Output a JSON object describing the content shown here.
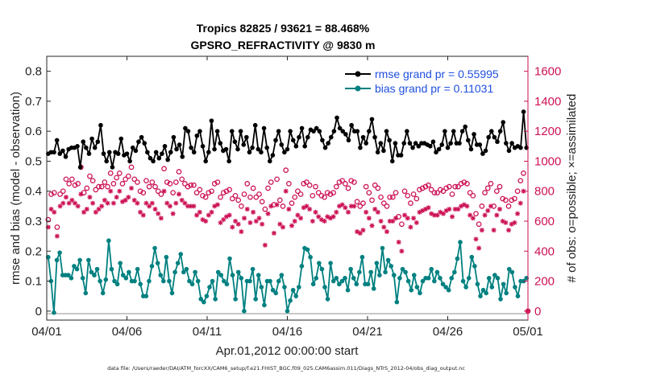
{
  "chart_data": {
    "type": "line",
    "title_line1": "Tropics 82825 / 93621 = 88.468%",
    "title_line2": "GPSRO_REFRACTIVITY @ 9830 m",
    "ylabel_left": "rmse and bias (model - observation)",
    "ylabel_right": "# of obs: o=possible; ×=assimilated",
    "xlabel": "Apr.01,2012 00:00:00 start",
    "footnote": "data file: /Users/raeder/DAI/ATM_forcXX/CAM6_setup/f.e21.FHIST_BGC.f09_025.CAM6assim.011/Diags_NTrS_2012-04/obs_diag_output.nc",
    "x_ticks": [
      {
        "day": 0,
        "label": "04/01"
      },
      {
        "day": 5,
        "label": "04/06"
      },
      {
        "day": 10,
        "label": "04/11"
      },
      {
        "day": 15,
        "label": "04/16"
      },
      {
        "day": 20,
        "label": "04/21"
      },
      {
        "day": 25,
        "label": "04/26"
      },
      {
        "day": 30,
        "label": "05/01"
      }
    ],
    "y_left_ticks": [
      "0",
      "0.1",
      "0.2",
      "0.3",
      "0.4",
      "0.5",
      "0.6",
      "0.7",
      "0.8"
    ],
    "y_right_ticks": [
      "0",
      "200",
      "400",
      "600",
      "800",
      "1000",
      "1200",
      "1400",
      "1600"
    ],
    "xlim": [
      0,
      30
    ],
    "ylim_left": [
      -0.03,
      0.85
    ],
    "ylim_right": [
      -60,
      1700
    ],
    "colors": {
      "rmse": "#000000",
      "bias": "#008080",
      "obs": "#cc1155",
      "legend_text": "#1f4fe0"
    },
    "series": [
      {
        "name": "rmse grand pr = 0.55995",
        "values": [
          0.525,
          0.53,
          0.53,
          0.57,
          0.525,
          0.535,
          0.515,
          0.54,
          0.545,
          0.545,
          0.55,
          0.48,
          0.565,
          0.545,
          0.525,
          0.575,
          0.545,
          0.565,
          0.62,
          0.525,
          0.5,
          0.53,
          0.48,
          0.53,
          0.525,
          0.575,
          0.52,
          0.525,
          0.5,
          0.545,
          0.535,
          0.565,
          0.58,
          0.56,
          0.53,
          0.51,
          0.5,
          0.53,
          0.51,
          0.525,
          0.55,
          0.505,
          0.53,
          0.58,
          0.54,
          0.555,
          0.515,
          0.61,
          0.6,
          0.545,
          0.53,
          0.585,
          0.6,
          0.55,
          0.5,
          0.53,
          0.635,
          0.54,
          0.6,
          0.56,
          0.535,
          0.54,
          0.5,
          0.6,
          0.565,
          0.54,
          0.6,
          0.555,
          0.58,
          0.53,
          0.545,
          0.62,
          0.54,
          0.53,
          0.61,
          0.545,
          0.5,
          0.52,
          0.57,
          0.6,
          0.555,
          0.53,
          0.54,
          0.6,
          0.57,
          0.55,
          0.58,
          0.61,
          0.55,
          0.58,
          0.605,
          0.6,
          0.61,
          0.6,
          0.57,
          0.545,
          0.56,
          0.58,
          0.6,
          0.645,
          0.61,
          0.6,
          0.59,
          0.57,
          0.62,
          0.6,
          0.6,
          0.545,
          0.58,
          0.56,
          0.6,
          0.64,
          0.58,
          0.53,
          0.56,
          0.535,
          0.6,
          0.57,
          0.5,
          0.56,
          0.52,
          0.52,
          0.56,
          0.6,
          0.56,
          0.545,
          0.56,
          0.55,
          0.56,
          0.56,
          0.555,
          0.55,
          0.565,
          0.53,
          0.54,
          0.555,
          0.6,
          0.545,
          0.56,
          0.6,
          0.56,
          0.56,
          0.6,
          0.615,
          0.57,
          0.54,
          0.59,
          0.555,
          0.555,
          0.525,
          0.535,
          0.58,
          0.6,
          0.58,
          0.565,
          0.6,
          0.63,
          0.56,
          0.535,
          0.56,
          0.545,
          0.55,
          0.545,
          0.665,
          0.545
        ]
      },
      {
        "name": "bias grand pr = 0.11031",
        "values": [
          0.18,
          0.1,
          -0.005,
          0.17,
          0.195,
          0.12,
          0.12,
          0.12,
          0.11,
          0.15,
          0.14,
          0.17,
          0.11,
          0.06,
          0.17,
          0.13,
          0.12,
          0.14,
          0.1,
          0.06,
          0.105,
          0.235,
          0.14,
          0.1,
          0.09,
          0.16,
          0.12,
          0.11,
          0.13,
          0.1,
          0.1,
          0.14,
          0.09,
          0.05,
          0.05,
          0.1,
          0.15,
          0.21,
          0.16,
          0.12,
          0.1,
          0.18,
          0.1,
          0.06,
          0.13,
          0.16,
          0.19,
          0.13,
          0.14,
          0.1,
          0.09,
          0.13,
          0.1,
          0.04,
          0.03,
          0.05,
          0.08,
          0.1,
          0.04,
          0.13,
          0.12,
          0.1,
          0.09,
          0.175,
          0.12,
          0.04,
          0.13,
          0.11,
          0.0,
          0.1,
          0.1,
          0.14,
          0.04,
          0.12,
          0.08,
          0.02,
          0.1,
          0.1,
          0.07,
          0.06,
          0.1,
          0.12,
          0.08,
          0.0,
          0.035,
          0.07,
          0.05,
          0.08,
          0.15,
          0.21,
          0.205,
          0.18,
          0.09,
          0.11,
          0.16,
          0.14,
          0.08,
          0.04,
          0.16,
          0.1,
          0.11,
          0.09,
          0.1,
          0.11,
          0.07,
          0.14,
          0.11,
          0.09,
          0.13,
          0.18,
          0.09,
          0.09,
          0.13,
          0.075,
          0.16,
          0.12,
          0.21,
          0.13,
          0.17,
          0.15,
          0.12,
          0.03,
          0.11,
          0.14,
          0.13,
          0.1,
          0.07,
          0.12,
          0.08,
          0.06,
          0.1,
          0.11,
          0.11,
          0.14,
          0.1,
          0.13,
          0.11,
          0.09,
          0.08,
          0.07,
          0.11,
          0.13,
          0.175,
          0.23,
          0.1,
          0.08,
          0.11,
          0.18,
          0.15,
          0.09,
          0.05,
          0.07,
          0.06,
          0.11,
          0.08,
          0.12,
          0.11,
          0.04,
          0.09,
          0.06,
          0.14,
          0.13,
          0.08,
          0.05,
          0.1,
          0.1,
          0.11
        ]
      }
    ],
    "obs_possible": [
      610,
      780,
      790,
      560,
      780,
      800,
      880,
      850,
      880,
      840,
      850,
      960,
      790,
      820,
      900,
      870,
      810,
      830,
      830,
      860,
      830,
      920,
      850,
      890,
      920,
      850,
      880,
      900,
      960,
      880,
      860,
      800,
      790,
      870,
      830,
      860,
      830,
      800,
      780,
      950,
      860,
      850,
      790,
      860,
      930,
      880,
      850,
      830,
      840,
      840,
      790,
      810,
      770,
      760,
      790,
      800,
      850,
      860,
      760,
      790,
      800,
      810,
      750,
      770,
      740,
      700,
      780,
      850,
      760,
      820,
      760,
      780,
      730,
      680,
      820,
      860,
      710,
      880,
      740,
      700,
      940,
      850,
      720,
      760,
      800,
      780,
      850,
      860,
      840,
      770,
      830,
      790,
      770,
      760,
      790,
      780,
      790,
      830,
      860,
      870,
      850,
      820,
      870,
      860,
      730,
      700,
      720,
      830,
      790,
      740,
      840,
      820,
      760,
      720,
      700,
      760,
      760,
      790,
      630,
      580,
      800,
      770,
      720,
      780,
      750,
      810,
      820,
      830,
      840,
      810,
      790,
      790,
      810,
      800,
      820,
      830,
      780,
      830,
      830,
      850,
      860,
      850,
      790,
      770,
      650,
      580,
      700,
      790,
      820,
      850,
      700,
      800,
      830,
      750,
      740,
      700,
      740,
      750,
      800,
      870,
      920,
      0
    ],
    "obs_assimilated": [
      560,
      680,
      660,
      500,
      700,
      720,
      760,
      720,
      740,
      720,
      700,
      780,
      660,
      680,
      760,
      720,
      660,
      680,
      700,
      740,
      720,
      800,
      720,
      760,
      800,
      730,
      740,
      760,
      820,
      740,
      720,
      660,
      640,
      720,
      700,
      720,
      680,
      650,
      620,
      800,
      720,
      700,
      650,
      720,
      780,
      740,
      720,
      700,
      700,
      700,
      640,
      660,
      610,
      600,
      640,
      660,
      700,
      710,
      590,
      610,
      630,
      640,
      560,
      600,
      580,
      530,
      620,
      680,
      590,
      660,
      600,
      620,
      580,
      440,
      650,
      700,
      520,
      710,
      580,
      560,
      800,
      680,
      570,
      600,
      640,
      620,
      690,
      700,
      680,
      600,
      660,
      630,
      610,
      600,
      630,
      620,
      630,
      660,
      700,
      710,
      690,
      660,
      700,
      700,
      530,
      520,
      540,
      660,
      620,
      570,
      680,
      660,
      600,
      560,
      530,
      600,
      600,
      620,
      460,
      400,
      640,
      620,
      560,
      620,
      590,
      660,
      670,
      680,
      690,
      650,
      640,
      640,
      660,
      650,
      670,
      680,
      630,
      680,
      680,
      700,
      710,
      700,
      640,
      620,
      480,
      420,
      540,
      640,
      670,
      700,
      540,
      640,
      680,
      600,
      590,
      540,
      580,
      590,
      650,
      720,
      800,
      0
    ]
  }
}
